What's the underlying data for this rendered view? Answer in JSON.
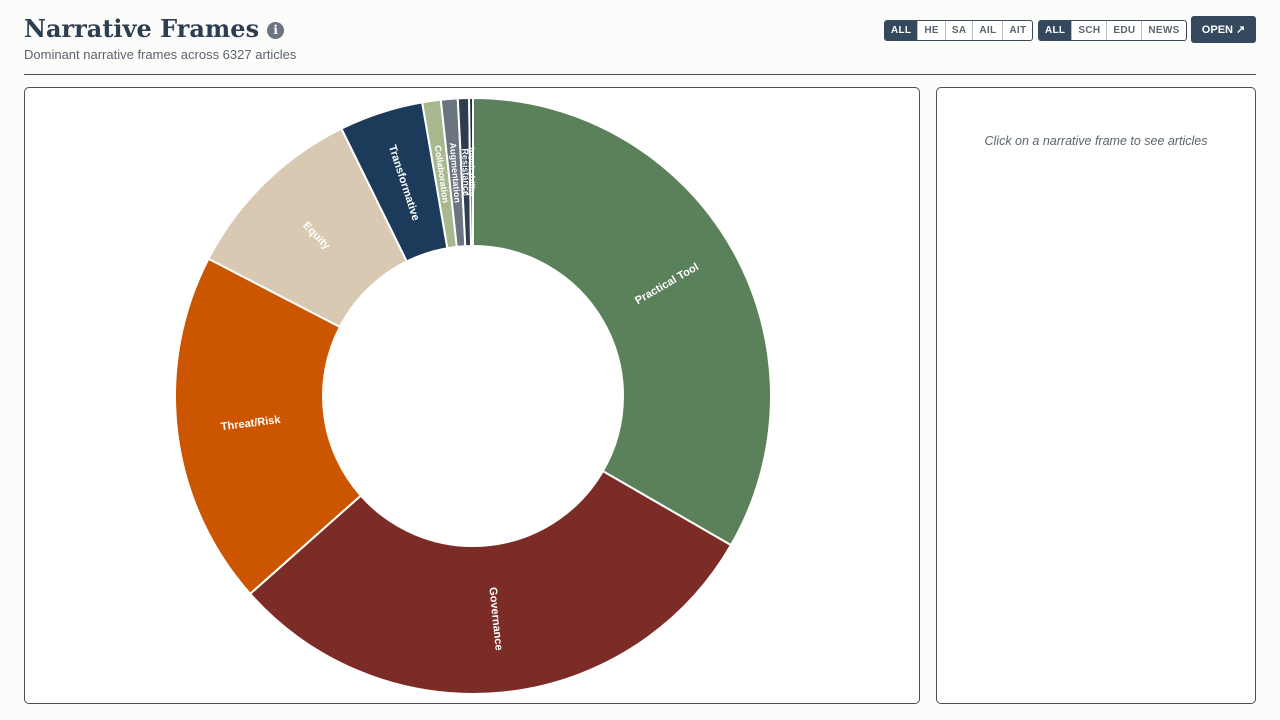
{
  "header": {
    "title": "Narrative Frames",
    "info_icon": "info-icon",
    "subtitle": "Dominant narrative frames across 6327 articles"
  },
  "filters": {
    "group1": [
      {
        "label": "ALL",
        "active": true
      },
      {
        "label": "HE",
        "active": false
      },
      {
        "label": "SA",
        "active": false
      },
      {
        "label": "AIL",
        "active": false
      },
      {
        "label": "AIT",
        "active": false
      }
    ],
    "group2": [
      {
        "label": "ALL",
        "active": true
      },
      {
        "label": "SCH",
        "active": false
      },
      {
        "label": "EDU",
        "active": false
      },
      {
        "label": "NEWS",
        "active": false
      }
    ],
    "open_label": "OPEN",
    "open_icon": "external-arrow-icon"
  },
  "side_panel": {
    "hint": "Click on a narrative frame to see articles"
  },
  "chart_data": {
    "type": "pie",
    "donut": true,
    "total": 6327,
    "slices": [
      {
        "label": "Practical Tool",
        "value": 2089,
        "color": "#5a8159"
      },
      {
        "label": "Governance",
        "value": 1886,
        "color": "#7c2c26"
      },
      {
        "label": "Threat/Risk",
        "value": 1201,
        "color": "#cc5500"
      },
      {
        "label": "Equity",
        "value": 633,
        "color": "#d9c9b3"
      },
      {
        "label": "Transformative",
        "value": 285,
        "color": "#1c3a5a"
      },
      {
        "label": "Collaboration",
        "value": 63,
        "color": "#a7b88f"
      },
      {
        "label": "Augmentation",
        "value": 57,
        "color": "#6c7480"
      },
      {
        "label": "Resistance",
        "value": 38,
        "color": "#2c3e50"
      },
      {
        "label": "Inevitability",
        "value": 13,
        "color": "#1f2a36"
      }
    ]
  }
}
